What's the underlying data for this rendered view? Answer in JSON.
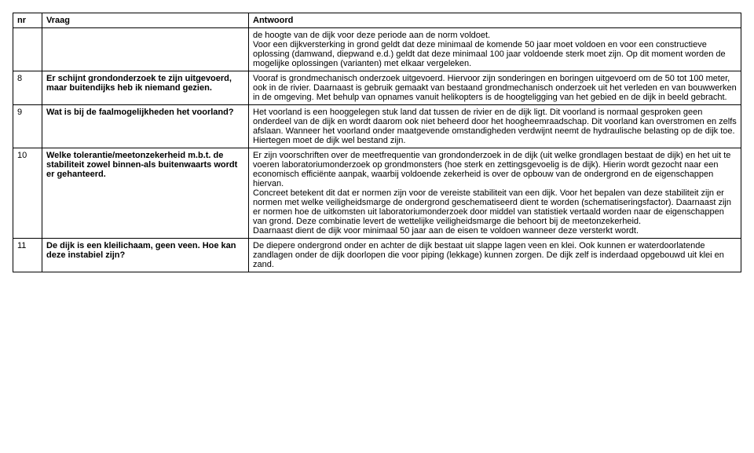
{
  "header": {
    "nr": "nr",
    "vraag": "Vraag",
    "antwoord": "Antwoord"
  },
  "rows": [
    {
      "nr": "",
      "q": "",
      "a": "de hoogte van de dijk voor deze periode aan de norm voldoet.\nVoor een dijkversterking in grond geldt dat deze minimaal de komende 50 jaar moet voldoen en voor een constructieve oplossing (damwand, diepwand e.d.) geldt dat deze minimaal 100 jaar voldoende sterk moet zijn. Op dit moment worden de mogelijke oplossingen (varianten) met elkaar vergeleken."
    },
    {
      "nr": "8",
      "q": "Er schijnt grondonderzoek te zijn uitgevoerd, maar buitendijks heb ik niemand gezien.",
      "a": "Vooraf is grondmechanisch onderzoek uitgevoerd. Hiervoor zijn sonderingen en boringen uitgevoerd om de 50 tot 100 meter, ook in de rivier. Daarnaast is gebruik gemaakt van bestaand grondmechanisch onderzoek uit het verleden en van bouwwerken in de omgeving. Met behulp van opnames vanuit helikopters is de hoogteligging van het gebied en de dijk in beeld gebracht."
    },
    {
      "nr": "9",
      "q": "Wat is bij de faalmogelijkheden het voorland?",
      "a": "Het voorland is een hooggelegen stuk land dat tussen de rivier en de dijk ligt. Dit voorland is normaal gesproken geen onderdeel van de dijk en wordt daarom ook niet beheerd door het hoogheemraadschap. Dit voorland kan overstromen en zelfs afslaan. Wanneer het voorland onder maatgevende omstandigheden verdwijnt neemt de hydraulische belasting op de dijk toe. Hiertegen moet de dijk wel bestand zijn."
    },
    {
      "nr": "10",
      "q": "Welke tolerantie/meetonzekerheid m.b.t. de stabiliteit zowel binnen-als buitenwaarts wordt er gehanteerd.",
      "a": "Er zijn voorschriften over de meetfrequentie van grondonderzoek in de dijk (uit welke grondlagen bestaat de dijk) en het uit te voeren laboratoriumonderzoek op grondmonsters (hoe sterk en zettingsgevoelig is de dijk). Hierin wordt gezocht naar een economisch efficiënte aanpak, waarbij voldoende zekerheid is over de opbouw van de ondergrond en de eigenschappen hiervan.\nConcreet betekent dit dat er normen zijn voor de vereiste stabiliteit van een dijk. Voor het bepalen van deze stabiliteit zijn er normen met welke veiligheidsmarge de ondergrond geschematiseerd dient te worden (schematiseringsfactor). Daarnaast zijn er normen hoe de uitkomsten uit laboratoriumonderzoek door middel van statistiek vertaald worden naar de eigenschappen van grond. Deze combinatie levert de wettelijke veiligheidsmarge die behoort bij de meetonzekerheid.\nDaarnaast dient de dijk voor minimaal 50 jaar aan de eisen te voldoen wanneer deze versterkt wordt."
    },
    {
      "nr": "11",
      "q": "De dijk is een kleilichaam, geen veen. Hoe kan deze instabiel zijn?",
      "a": "De diepere ondergrond onder en achter de dijk bestaat uit slappe lagen veen en klei. Ook kunnen er waterdoorlatende zandlagen onder de dijk doorlopen die voor piping (lekkage) kunnen zorgen. De dijk zelf is inderdaad opgebouwd uit klei en zand."
    }
  ]
}
